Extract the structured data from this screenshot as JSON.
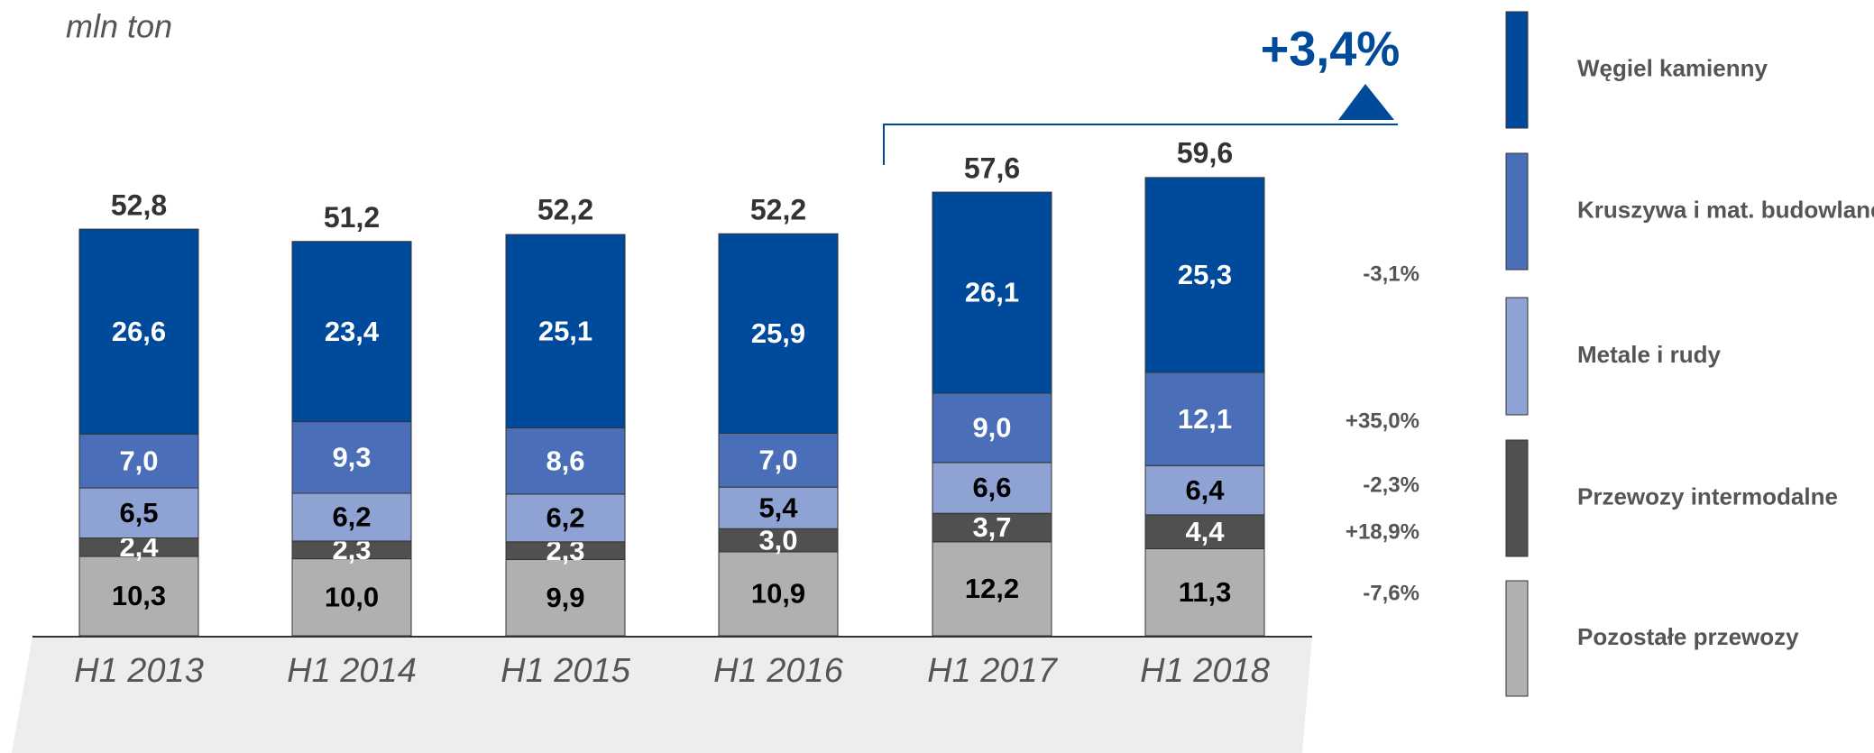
{
  "chart_data": {
    "type": "stacked_bar",
    "unit_label": "mln ton",
    "annotation": "+3,4%",
    "categories": [
      "H1 2013",
      "H1 2014",
      "H1 2015",
      "H1 2016",
      "H1 2017",
      "H1 2018"
    ],
    "series": [
      {
        "name": "Pozostałe przewozy",
        "color": "#b0b0b0",
        "text_color": "#000000",
        "change": "-7,6%",
        "values": [
          10.3,
          10.0,
          9.9,
          10.9,
          12.2,
          11.3
        ],
        "value_labels": [
          "10,3",
          "10,0",
          "9,9",
          "10,9",
          "12,2",
          "11,3"
        ]
      },
      {
        "name": "Przewozy intermodalne",
        "color": "#505050",
        "text_color": "#ffffff",
        "change": "+18,9%",
        "values": [
          2.4,
          2.3,
          2.3,
          3.0,
          3.7,
          4.4
        ],
        "value_labels": [
          "2,4",
          "2,3",
          "2,3",
          "3,0",
          "3,7",
          "4,4"
        ]
      },
      {
        "name": "Metale i rudy",
        "color": "#8fa2d4",
        "text_color": "#000000",
        "change": "-2,3%",
        "values": [
          6.5,
          6.2,
          6.2,
          5.4,
          6.6,
          6.4
        ],
        "value_labels": [
          "6,5",
          "6,2",
          "6,2",
          "5,4",
          "6,6",
          "6,4"
        ]
      },
      {
        "name": "Kruszywa i mat. budowlane",
        "color": "#4a6fb8",
        "text_color": "#ffffff",
        "change": "+35,0%",
        "values": [
          7.0,
          9.3,
          8.6,
          7.0,
          9.0,
          12.1
        ],
        "value_labels": [
          "7,0",
          "9,3",
          "8,6",
          "7,0",
          "9,0",
          "12,1"
        ]
      },
      {
        "name": "Węgiel kamienny",
        "color": "#004a9c",
        "text_color": "#ffffff",
        "change": "-3,1%",
        "values": [
          26.6,
          23.4,
          25.1,
          25.9,
          26.1,
          25.3
        ],
        "value_labels": [
          "26,6",
          "23,4",
          "25,1",
          "25,9",
          "26,1",
          "25,3"
        ]
      }
    ],
    "totals": [
      52.8,
      51.2,
      52.2,
      52.2,
      57.6,
      59.6
    ],
    "total_labels": [
      "52,8",
      "51,2",
      "52,2",
      "52,2",
      "57,6",
      "59,6"
    ]
  }
}
